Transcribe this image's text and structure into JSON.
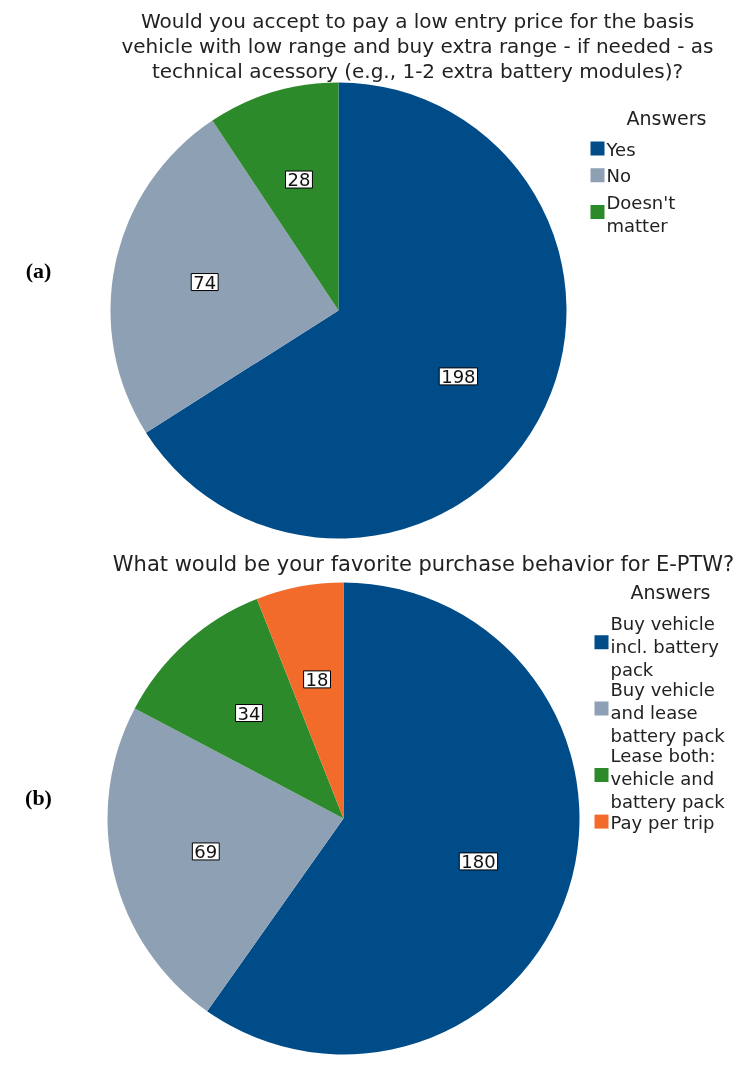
{
  "chart_data": [
    {
      "type": "pie",
      "title": "Would you accept to pay a low entry price for the basis vehicle with low range and buy extra range - if needed - as technical acessory (e.g., 1-2 extra battery modules)?",
      "categories": [
        "Yes",
        "No",
        "Doesn't matter"
      ],
      "values": [
        198,
        74,
        28
      ],
      "colors": [
        "#004c89",
        "#8ea0b3",
        "#2d8a2b"
      ],
      "data_labels": true,
      "legend": "top right",
      "legend_title": "Answers",
      "annotations": [
        "(a)"
      ]
    },
    {
      "type": "pie",
      "title": "What would be your favorite purchase behavior for E-PTW?",
      "categories": [
        "Buy vehicle incl. battery pack",
        "Buy vehicle and lease battery pack",
        "Lease both: vehicle and battery pack",
        "Pay per trip"
      ],
      "values": [
        180,
        69,
        34,
        18
      ],
      "colors": [
        "#004c89",
        "#8ea0b3",
        "#2d8a2b",
        "#f26b2b"
      ],
      "data_labels": true,
      "legend": "top right",
      "legend_title": "Answers",
      "annotations": [
        "(b)"
      ]
    }
  ]
}
